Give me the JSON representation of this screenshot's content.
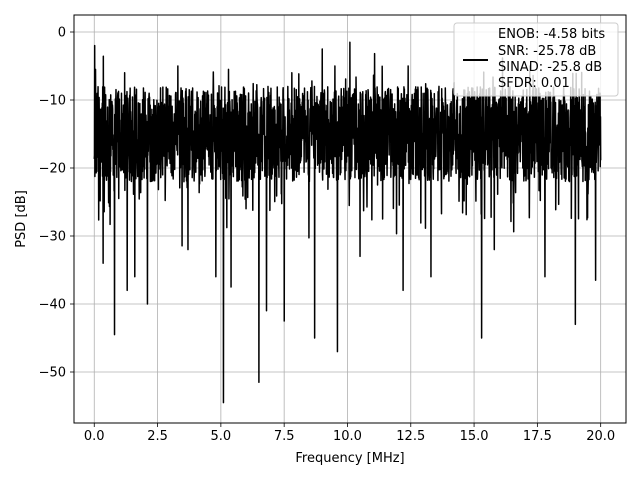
{
  "chart_data": {
    "type": "line",
    "xlabel": "Frequency [MHz]",
    "ylabel": "PSD [dB]",
    "xlim": [
      -0.8,
      21.0
    ],
    "ylim": [
      -57.5,
      2.5
    ],
    "xticks": [
      0.0,
      2.5,
      5.0,
      7.5,
      10.0,
      12.5,
      15.0,
      17.5,
      20.0
    ],
    "xtick_labels": [
      "0.0",
      "2.5",
      "5.0",
      "7.5",
      "10.0",
      "12.5",
      "15.0",
      "17.5",
      "20.0"
    ],
    "yticks": [
      0,
      -10,
      -20,
      -30,
      -40,
      -50
    ],
    "ytick_labels": [
      "0",
      "−10",
      "−20",
      "−30",
      "−40",
      "−50"
    ],
    "grid": true,
    "legend_position": "top-right",
    "legend_lines": [
      "ENOB: -4.58 bits",
      "SNR: -25.78 dB",
      "SINAD: -25.8 dB",
      "SFDR: 0.01"
    ],
    "line_color": "#000000",
    "series": [
      {
        "x_start": 0.0,
        "x_end": 20.0,
        "trace_band_db": [
          -22,
          -8
        ],
        "peaks": [
          {
            "x": 0.02,
            "y": -2
          },
          {
            "x": 0.05,
            "y": -5.5
          },
          {
            "x": 1.2,
            "y": -6
          },
          {
            "x": 3.3,
            "y": -5
          },
          {
            "x": 5.3,
            "y": -5.5
          },
          {
            "x": 7.8,
            "y": -6
          },
          {
            "x": 9.0,
            "y": -2.5
          },
          {
            "x": 9.5,
            "y": -5
          },
          {
            "x": 10.1,
            "y": -1.5
          },
          {
            "x": 12.4,
            "y": -5
          },
          {
            "x": 17.2,
            "y": -5
          }
        ],
        "dips": [
          {
            "x": 0.35,
            "y": -34
          },
          {
            "x": 0.8,
            "y": -44.5
          },
          {
            "x": 1.3,
            "y": -38
          },
          {
            "x": 1.6,
            "y": -36
          },
          {
            "x": 2.1,
            "y": -40
          },
          {
            "x": 3.7,
            "y": -32
          },
          {
            "x": 4.8,
            "y": -36
          },
          {
            "x": 5.1,
            "y": -54.5
          },
          {
            "x": 5.4,
            "y": -37.5
          },
          {
            "x": 6.5,
            "y": -51.5
          },
          {
            "x": 6.8,
            "y": -41
          },
          {
            "x": 7.5,
            "y": -42.5
          },
          {
            "x": 8.7,
            "y": -45
          },
          {
            "x": 9.6,
            "y": -47
          },
          {
            "x": 10.5,
            "y": -33
          },
          {
            "x": 12.2,
            "y": -38
          },
          {
            "x": 13.3,
            "y": -36
          },
          {
            "x": 15.3,
            "y": -45
          },
          {
            "x": 15.8,
            "y": -32
          },
          {
            "x": 17.8,
            "y": -36
          },
          {
            "x": 19.0,
            "y": -43
          },
          {
            "x": 19.8,
            "y": -36.5
          }
        ]
      }
    ]
  }
}
